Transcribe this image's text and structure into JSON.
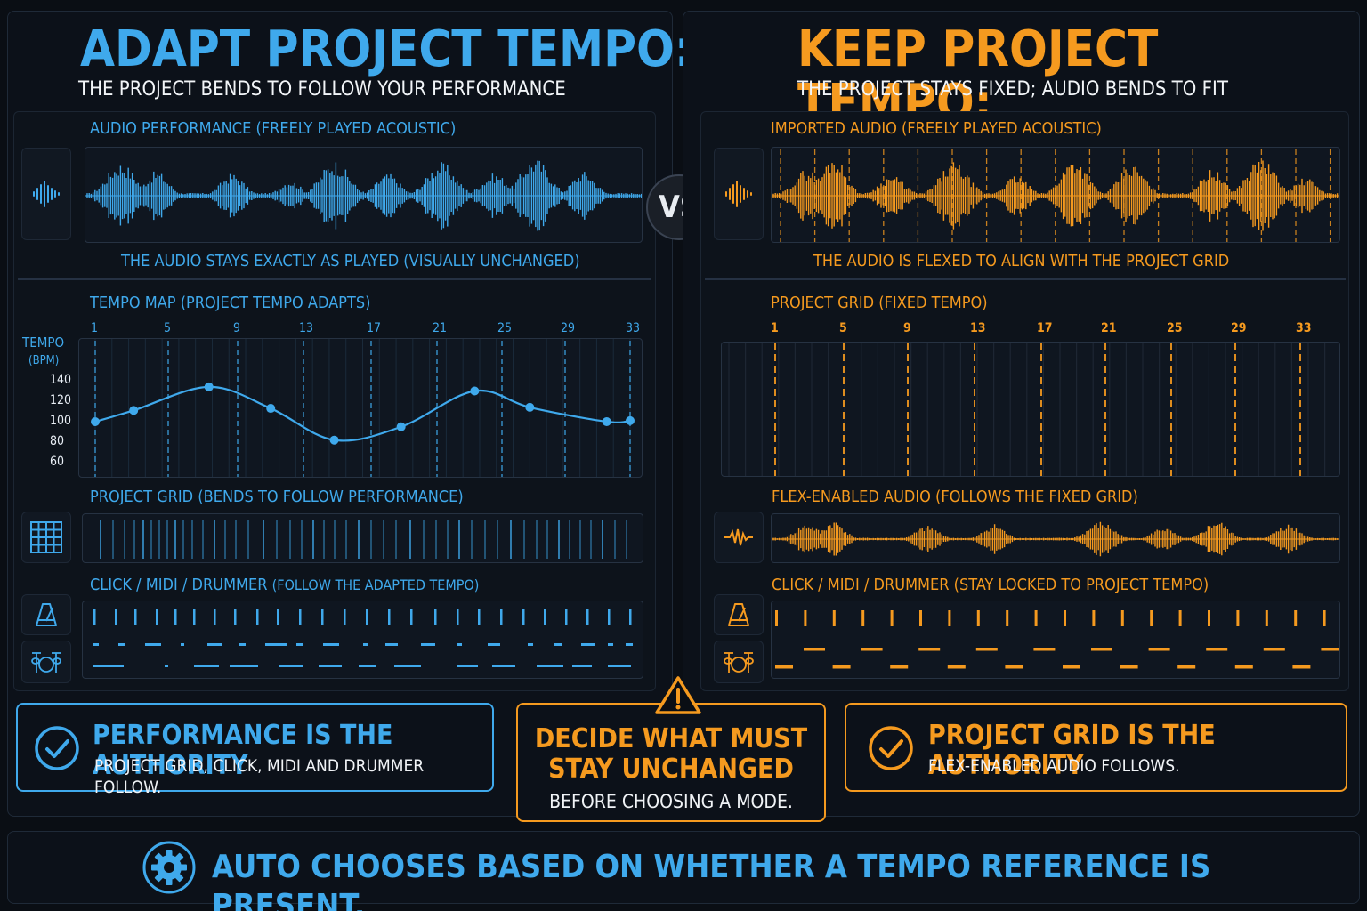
{
  "left": {
    "title": "ADAPT PROJECT TEMPO:",
    "subtitle": "THE PROJECT BENDS TO FOLLOW YOUR PERFORMANCE",
    "audio_label": "AUDIO PERFORMANCE (FREELY PLAYED ACOUSTIC)",
    "audio_caption": "THE AUDIO STAYS EXACTLY AS PLAYED (VISUALLY UNCHANGED)",
    "tempo_label": "TEMPO MAP (PROJECT TEMPO ADAPTS)",
    "tempo_axis_title": "TEMPO",
    "tempo_axis_unit": "(BPM)",
    "grid_label": "PROJECT GRID (BENDS TO FOLLOW PERFORMANCE)",
    "click_label_main": "CLICK / MIDI / DRUMMER",
    "click_label_sub": "(FOLLOW THE ADAPTED TEMPO)"
  },
  "right": {
    "title": "KEEP PROJECT TEMPO:",
    "subtitle": "THE PROJECT STAYS FIXED; AUDIO BENDS TO FIT",
    "audio_label": "IMPORTED AUDIO (FREELY PLAYED ACOUSTIC)",
    "audio_caption": "THE AUDIO IS FLEXED TO ALIGN WITH THE PROJECT GRID",
    "grid_label": "PROJECT GRID (FIXED TEMPO)",
    "flex_label": "FLEX-ENABLED AUDIO (FOLLOWS THE FIXED GRID)",
    "click_label": "CLICK / MIDI / DRUMMER (STAY LOCKED TO PROJECT TEMPO)"
  },
  "vs_label": "VS",
  "bar_numbers": [
    "1",
    "5",
    "9",
    "13",
    "17",
    "21",
    "25",
    "29",
    "33"
  ],
  "chart_data": {
    "type": "line",
    "title": "TEMPO MAP (PROJECT TEMPO ADAPTS)",
    "xlabel": "",
    "ylabel": "TEMPO (BPM)",
    "x_ticks": [
      "1",
      "5",
      "9",
      "13",
      "17",
      "21",
      "25",
      "29",
      "33"
    ],
    "y_ticks": [
      "140",
      "120",
      "100",
      "80",
      "60"
    ],
    "ylim": [
      60,
      140
    ],
    "xlim": [
      1,
      33
    ],
    "points": [
      {
        "x": 1,
        "y": 100
      },
      {
        "x": 3.3,
        "y": 111
      },
      {
        "x": 7.8,
        "y": 134
      },
      {
        "x": 11.5,
        "y": 113
      },
      {
        "x": 15.3,
        "y": 82
      },
      {
        "x": 19.3,
        "y": 95
      },
      {
        "x": 23.7,
        "y": 130
      },
      {
        "x": 27,
        "y": 114
      },
      {
        "x": 31.6,
        "y": 100
      },
      {
        "x": 33,
        "y": 101
      }
    ]
  },
  "callouts": {
    "left_head": "PERFORMANCE IS THE AUTHORITY",
    "left_body": "PROJECT GRID, CLICK, MIDI AND DRUMMER FOLLOW.",
    "center_head_1": "DECIDE WHAT MUST",
    "center_head_2": "STAY UNCHANGED",
    "center_body": "BEFORE CHOOSING A MODE.",
    "right_head": "PROJECT GRID IS THE AUTHORITY",
    "right_body": "FLEX-ENABLED AUDIO FOLLOWS."
  },
  "footer": {
    "text": "AUTO CHOOSES BASED ON WHETHER A TEMPO REFERENCE IS PRESENT."
  },
  "colors": {
    "blue": "#3fa9ec",
    "orange": "#f59a1f",
    "background": "#0a0e14"
  },
  "icons": {
    "audio": "waveform-icon",
    "grid": "grid-icon",
    "flex": "flex-wave-icon",
    "metronome": "metronome-icon",
    "drums": "drum-kit-icon",
    "check": "check-circle-icon",
    "warning": "warning-icon",
    "gear": "gear-icon"
  }
}
